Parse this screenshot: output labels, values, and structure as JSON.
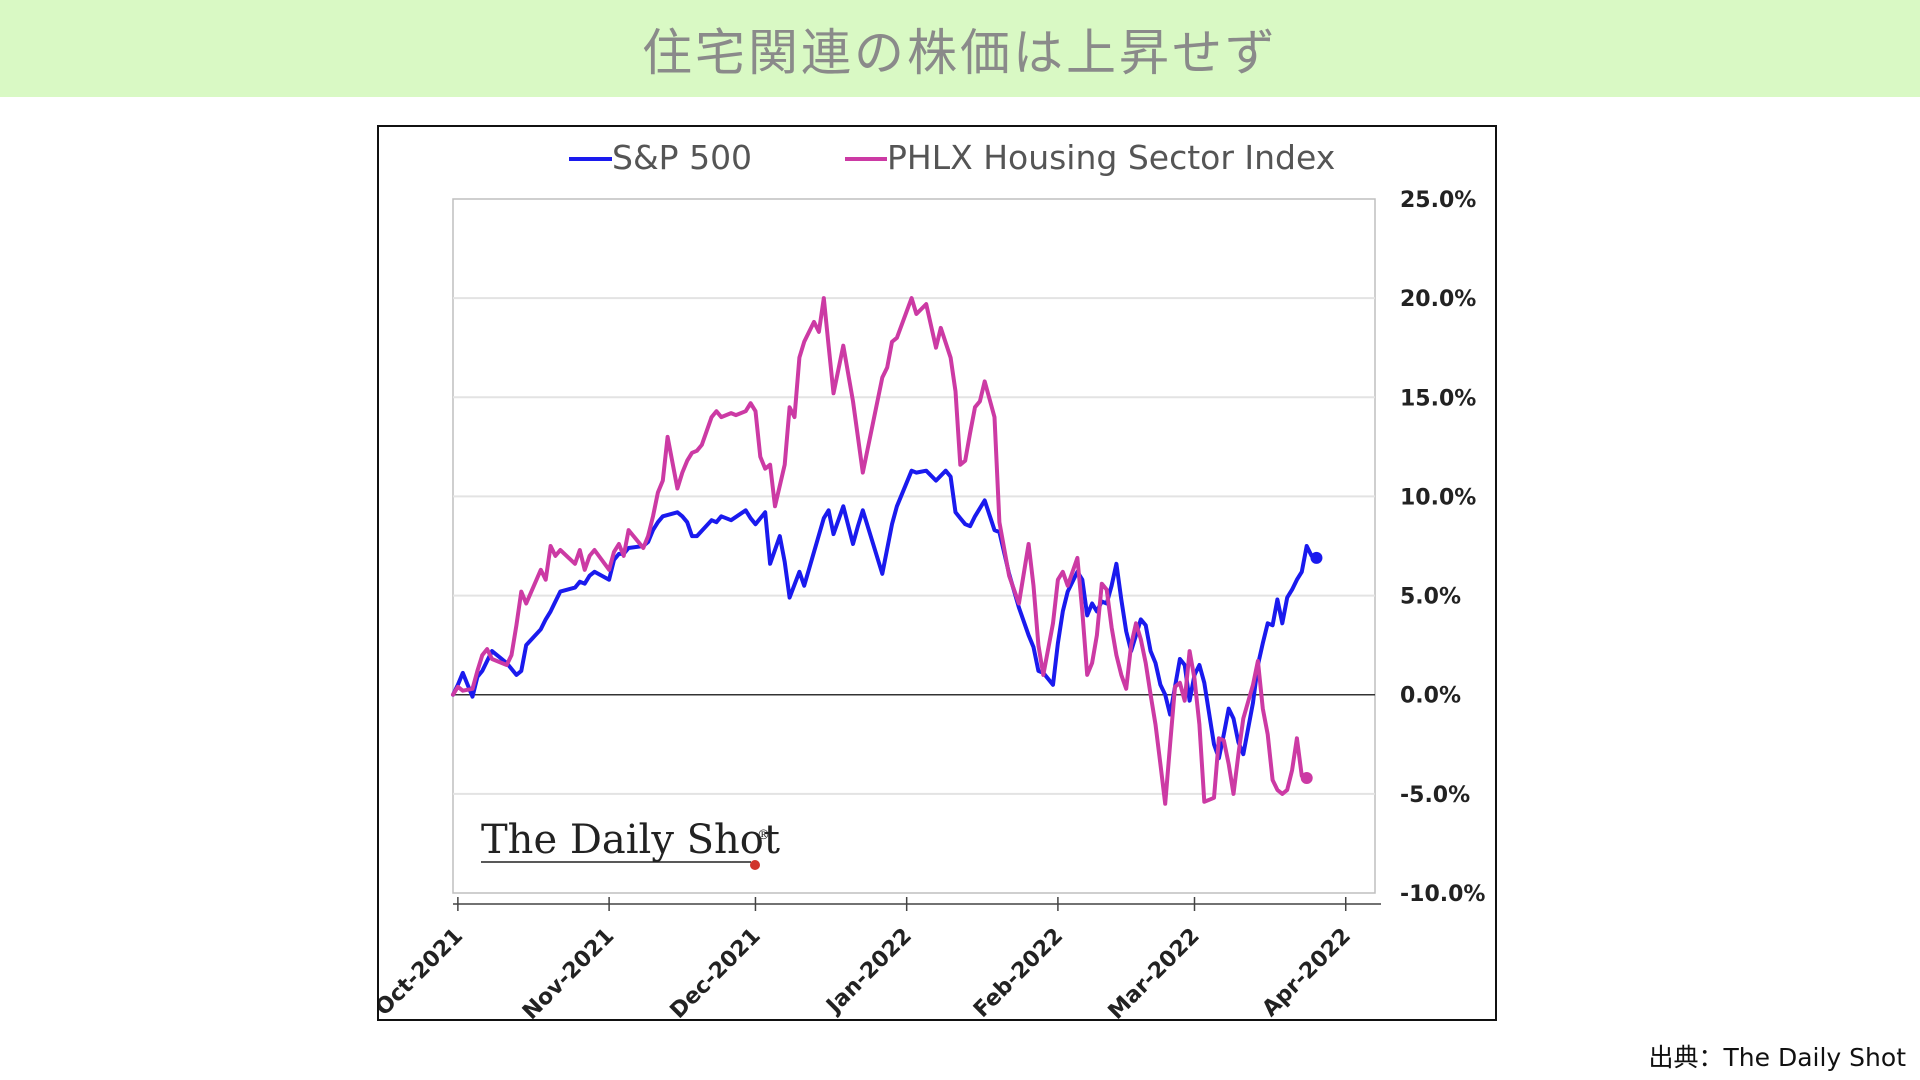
{
  "header": {
    "title": "住宅関連の株価は上昇せず"
  },
  "footer": {
    "source": "出典：The Daily Shot"
  },
  "logo": {
    "text": "The Daily Shot",
    "mark": "®"
  },
  "chart_data": {
    "type": "line",
    "x_ticks": [
      "Oct-2021",
      "Nov-2021",
      "Dec-2021",
      "Jan-2022",
      "Feb-2022",
      "Mar-2022",
      "Apr-2022"
    ],
    "y_ticks": [
      "25.0%",
      "20.0%",
      "15.0%",
      "10.0%",
      "5.0%",
      "0.0%",
      "-5.0%",
      "-10.0%"
    ],
    "ylim": [
      -10,
      25
    ],
    "xlim": [
      "2021-09-30",
      "2022-04-07"
    ],
    "grid": true,
    "legend_position": "top",
    "y_axis_position": "right",
    "series": [
      {
        "name": "S&P 500",
        "color": "#1a1aee",
        "points": [
          [
            "2021-09-30",
            0.0
          ],
          [
            "2021-10-01",
            0.5
          ],
          [
            "2021-10-02",
            1.1
          ],
          [
            "2021-10-04",
            -0.1
          ],
          [
            "2021-10-05",
            0.9
          ],
          [
            "2021-10-06",
            1.2
          ],
          [
            "2021-10-07",
            1.7
          ],
          [
            "2021-10-08",
            2.2
          ],
          [
            "2021-10-11",
            1.6
          ],
          [
            "2021-10-12",
            1.3
          ],
          [
            "2021-10-13",
            1.0
          ],
          [
            "2021-10-14",
            1.2
          ],
          [
            "2021-10-15",
            2.5
          ],
          [
            "2021-10-18",
            3.3
          ],
          [
            "2021-10-19",
            3.8
          ],
          [
            "2021-10-20",
            4.2
          ],
          [
            "2021-10-21",
            4.7
          ],
          [
            "2021-10-22",
            5.2
          ],
          [
            "2021-10-25",
            5.4
          ],
          [
            "2021-10-26",
            5.7
          ],
          [
            "2021-10-27",
            5.6
          ],
          [
            "2021-10-28",
            6.0
          ],
          [
            "2021-10-29",
            6.2
          ],
          [
            "2021-11-01",
            5.8
          ],
          [
            "2021-11-02",
            6.8
          ],
          [
            "2021-11-03",
            7.1
          ],
          [
            "2021-11-04",
            7.1
          ],
          [
            "2021-11-05",
            7.4
          ],
          [
            "2021-11-08",
            7.5
          ],
          [
            "2021-11-09",
            7.7
          ],
          [
            "2021-11-10",
            8.3
          ],
          [
            "2021-11-11",
            8.7
          ],
          [
            "2021-11-12",
            9.0
          ],
          [
            "2021-11-15",
            9.2
          ],
          [
            "2021-11-16",
            9.0
          ],
          [
            "2021-11-17",
            8.7
          ],
          [
            "2021-11-18",
            8.0
          ],
          [
            "2021-11-19",
            8.0
          ],
          [
            "2021-11-22",
            8.8
          ],
          [
            "2021-11-23",
            8.7
          ],
          [
            "2021-11-24",
            9.0
          ],
          [
            "2021-11-26",
            8.8
          ],
          [
            "2021-11-29",
            9.3
          ],
          [
            "2021-11-30",
            8.9
          ],
          [
            "2021-12-01",
            8.6
          ],
          [
            "2021-12-03",
            9.2
          ],
          [
            "2021-12-04",
            6.6
          ],
          [
            "2021-12-06",
            8.0
          ],
          [
            "2021-12-07",
            6.7
          ],
          [
            "2021-12-08",
            4.9
          ],
          [
            "2021-12-10",
            6.2
          ],
          [
            "2021-12-11",
            5.5
          ],
          [
            "2021-12-13",
            7.2
          ],
          [
            "2021-12-15",
            8.9
          ],
          [
            "2021-12-16",
            9.3
          ],
          [
            "2021-12-17",
            8.1
          ],
          [
            "2021-12-19",
            9.5
          ],
          [
            "2021-12-21",
            7.6
          ],
          [
            "2021-12-22",
            8.5
          ],
          [
            "2021-12-23",
            9.3
          ],
          [
            "2021-12-27",
            6.1
          ],
          [
            "2021-12-29",
            8.6
          ],
          [
            "2021-12-30",
            9.5
          ],
          [
            "2022-01-02",
            11.3
          ],
          [
            "2022-01-03",
            11.2
          ],
          [
            "2022-01-05",
            11.3
          ],
          [
            "2022-01-07",
            10.8
          ],
          [
            "2022-01-09",
            11.3
          ],
          [
            "2022-01-10",
            11.0
          ],
          [
            "2022-01-11",
            9.2
          ],
          [
            "2022-01-12",
            8.9
          ],
          [
            "2022-01-13",
            8.6
          ],
          [
            "2022-01-14",
            8.5
          ],
          [
            "2022-01-15",
            9.0
          ],
          [
            "2022-01-17",
            9.8
          ],
          [
            "2022-01-19",
            8.3
          ],
          [
            "2022-01-20",
            8.2
          ],
          [
            "2022-01-22",
            6.1
          ],
          [
            "2022-01-24",
            4.4
          ],
          [
            "2022-01-26",
            3.0
          ],
          [
            "2022-01-27",
            2.4
          ],
          [
            "2022-01-28",
            1.2
          ],
          [
            "2022-01-29",
            1.1
          ],
          [
            "2022-01-31",
            0.5
          ],
          [
            "2022-02-01",
            2.6
          ],
          [
            "2022-02-02",
            4.2
          ],
          [
            "2022-02-03",
            5.2
          ],
          [
            "2022-02-05",
            6.2
          ],
          [
            "2022-02-06",
            5.8
          ],
          [
            "2022-02-07",
            4.0
          ],
          [
            "2022-02-08",
            4.6
          ],
          [
            "2022-02-09",
            4.2
          ],
          [
            "2022-02-10",
            4.7
          ],
          [
            "2022-02-11",
            4.6
          ],
          [
            "2022-02-12",
            5.5
          ],
          [
            "2022-02-13",
            6.6
          ],
          [
            "2022-02-14",
            4.8
          ],
          [
            "2022-02-15",
            3.2
          ],
          [
            "2022-02-16",
            2.2
          ],
          [
            "2022-02-17",
            3.0
          ],
          [
            "2022-02-18",
            3.8
          ],
          [
            "2022-02-19",
            3.5
          ],
          [
            "2022-02-20",
            2.2
          ],
          [
            "2022-02-21",
            1.6
          ],
          [
            "2022-02-22",
            0.5
          ],
          [
            "2022-02-23",
            0.0
          ],
          [
            "2022-02-24",
            -1.0
          ],
          [
            "2022-02-25",
            0.4
          ],
          [
            "2022-02-26",
            1.8
          ],
          [
            "2022-02-27",
            1.5
          ],
          [
            "2022-02-28",
            -0.3
          ],
          [
            "2022-03-01",
            1.0
          ],
          [
            "2022-03-02",
            1.5
          ],
          [
            "2022-03-03",
            0.6
          ],
          [
            "2022-03-05",
            -2.5
          ],
          [
            "2022-03-06",
            -3.2
          ],
          [
            "2022-03-07",
            -2.0
          ],
          [
            "2022-03-08",
            -0.7
          ],
          [
            "2022-03-09",
            -1.2
          ],
          [
            "2022-03-10",
            -2.4
          ],
          [
            "2022-03-11",
            -3.0
          ],
          [
            "2022-03-13",
            -0.4
          ],
          [
            "2022-03-14",
            1.5
          ],
          [
            "2022-03-15",
            2.6
          ],
          [
            "2022-03-16",
            3.6
          ],
          [
            "2022-03-17",
            3.5
          ],
          [
            "2022-03-18",
            4.8
          ],
          [
            "2022-03-19",
            3.6
          ],
          [
            "2022-03-20",
            4.9
          ],
          [
            "2022-03-21",
            5.3
          ],
          [
            "2022-03-22",
            5.8
          ],
          [
            "2022-03-23",
            6.2
          ],
          [
            "2022-03-24",
            7.5
          ],
          [
            "2022-03-25",
            7.0
          ],
          [
            "2022-03-26",
            6.9
          ]
        ]
      },
      {
        "name": "PHLX Housing Sector Index",
        "color": "#cc3aa4",
        "points": [
          [
            "2021-09-30",
            0.0
          ],
          [
            "2021-10-01",
            0.4
          ],
          [
            "2021-10-02",
            0.2
          ],
          [
            "2021-10-04",
            0.3
          ],
          [
            "2021-10-05",
            1.2
          ],
          [
            "2021-10-06",
            2.0
          ],
          [
            "2021-10-07",
            2.3
          ],
          [
            "2021-10-08",
            1.8
          ],
          [
            "2021-10-11",
            1.5
          ],
          [
            "2021-10-12",
            2.0
          ],
          [
            "2021-10-13",
            3.5
          ],
          [
            "2021-10-14",
            5.2
          ],
          [
            "2021-10-15",
            4.6
          ],
          [
            "2021-10-18",
            6.3
          ],
          [
            "2021-10-19",
            5.8
          ],
          [
            "2021-10-20",
            7.5
          ],
          [
            "2021-10-21",
            7.0
          ],
          [
            "2021-10-22",
            7.3
          ],
          [
            "2021-10-25",
            6.6
          ],
          [
            "2021-10-26",
            7.3
          ],
          [
            "2021-10-27",
            6.3
          ],
          [
            "2021-10-28",
            7.0
          ],
          [
            "2021-10-29",
            7.3
          ],
          [
            "2021-11-01",
            6.3
          ],
          [
            "2021-11-02",
            7.2
          ],
          [
            "2021-11-03",
            7.6
          ],
          [
            "2021-11-04",
            7.0
          ],
          [
            "2021-11-05",
            8.3
          ],
          [
            "2021-11-08",
            7.4
          ],
          [
            "2021-11-09",
            8.0
          ],
          [
            "2021-11-10",
            9.0
          ],
          [
            "2021-11-11",
            10.2
          ],
          [
            "2021-11-12",
            10.8
          ],
          [
            "2021-11-13",
            13.0
          ],
          [
            "2021-11-15",
            10.4
          ],
          [
            "2021-11-16",
            11.2
          ],
          [
            "2021-11-17",
            11.8
          ],
          [
            "2021-11-18",
            12.2
          ],
          [
            "2021-11-19",
            12.3
          ],
          [
            "2021-11-20",
            12.6
          ],
          [
            "2021-11-22",
            14.0
          ],
          [
            "2021-11-23",
            14.3
          ],
          [
            "2021-11-24",
            14.0
          ],
          [
            "2021-11-26",
            14.2
          ],
          [
            "2021-11-27",
            14.1
          ],
          [
            "2021-11-29",
            14.3
          ],
          [
            "2021-11-30",
            14.7
          ],
          [
            "2021-12-01",
            14.3
          ],
          [
            "2021-12-02",
            12.0
          ],
          [
            "2021-12-03",
            11.4
          ],
          [
            "2021-12-04",
            11.6
          ],
          [
            "2021-12-05",
            9.5
          ],
          [
            "2021-12-07",
            11.6
          ],
          [
            "2021-12-08",
            14.5
          ],
          [
            "2021-12-09",
            14.0
          ],
          [
            "2021-12-10",
            17.0
          ],
          [
            "2021-12-11",
            17.8
          ],
          [
            "2021-12-13",
            18.8
          ],
          [
            "2021-12-14",
            18.3
          ],
          [
            "2021-12-15",
            20.0
          ],
          [
            "2021-12-16",
            17.6
          ],
          [
            "2021-12-17",
            15.2
          ],
          [
            "2021-12-19",
            17.6
          ],
          [
            "2021-12-21",
            14.8
          ],
          [
            "2021-12-22",
            13.0
          ],
          [
            "2021-12-23",
            11.2
          ],
          [
            "2021-12-27",
            16.0
          ],
          [
            "2021-12-28",
            16.5
          ],
          [
            "2021-12-29",
            17.8
          ],
          [
            "2021-12-30",
            18.0
          ],
          [
            "2022-01-02",
            20.0
          ],
          [
            "2022-01-03",
            19.2
          ],
          [
            "2022-01-05",
            19.7
          ],
          [
            "2022-01-07",
            17.5
          ],
          [
            "2022-01-08",
            18.5
          ],
          [
            "2022-01-10",
            17.0
          ],
          [
            "2022-01-11",
            15.3
          ],
          [
            "2022-01-12",
            11.6
          ],
          [
            "2022-01-13",
            11.8
          ],
          [
            "2022-01-14",
            13.2
          ],
          [
            "2022-01-15",
            14.5
          ],
          [
            "2022-01-16",
            14.8
          ],
          [
            "2022-01-17",
            15.8
          ],
          [
            "2022-01-19",
            14.0
          ],
          [
            "2022-01-20",
            8.7
          ],
          [
            "2022-01-22",
            6.0
          ],
          [
            "2022-01-24",
            4.6
          ],
          [
            "2022-01-26",
            7.6
          ],
          [
            "2022-01-27",
            5.5
          ],
          [
            "2022-01-28",
            2.5
          ],
          [
            "2022-01-29",
            1.0
          ],
          [
            "2022-01-31",
            3.6
          ],
          [
            "2022-02-01",
            5.8
          ],
          [
            "2022-02-02",
            6.2
          ],
          [
            "2022-02-03",
            5.5
          ],
          [
            "2022-02-05",
            6.9
          ],
          [
            "2022-02-06",
            4.2
          ],
          [
            "2022-02-07",
            1.0
          ],
          [
            "2022-02-08",
            1.6
          ],
          [
            "2022-02-09",
            3.0
          ],
          [
            "2022-02-10",
            5.6
          ],
          [
            "2022-02-11",
            5.3
          ],
          [
            "2022-02-12",
            3.4
          ],
          [
            "2022-02-13",
            2.0
          ],
          [
            "2022-02-14",
            1.0
          ],
          [
            "2022-02-15",
            0.3
          ],
          [
            "2022-02-16",
            2.5
          ],
          [
            "2022-02-17",
            3.6
          ],
          [
            "2022-02-18",
            2.8
          ],
          [
            "2022-02-19",
            1.6
          ],
          [
            "2022-02-20",
            0.0
          ],
          [
            "2022-02-21",
            -1.5
          ],
          [
            "2022-02-22",
            -3.5
          ],
          [
            "2022-02-23",
            -5.5
          ],
          [
            "2022-02-24",
            -2.5
          ],
          [
            "2022-02-25",
            0.4
          ],
          [
            "2022-02-26",
            0.6
          ],
          [
            "2022-02-27",
            -0.3
          ],
          [
            "2022-02-28",
            2.2
          ],
          [
            "2022-03-01",
            0.8
          ],
          [
            "2022-03-02",
            -1.5
          ],
          [
            "2022-03-03",
            -5.4
          ],
          [
            "2022-03-05",
            -5.2
          ],
          [
            "2022-03-06",
            -2.2
          ],
          [
            "2022-03-07",
            -2.3
          ],
          [
            "2022-03-08",
            -3.5
          ],
          [
            "2022-03-09",
            -5.0
          ],
          [
            "2022-03-10",
            -3.0
          ],
          [
            "2022-03-11",
            -1.2
          ],
          [
            "2022-03-13",
            0.5
          ],
          [
            "2022-03-14",
            1.7
          ],
          [
            "2022-03-15",
            -0.7
          ],
          [
            "2022-03-16",
            -2.0
          ],
          [
            "2022-03-17",
            -4.3
          ],
          [
            "2022-03-18",
            -4.8
          ],
          [
            "2022-03-19",
            -5.0
          ],
          [
            "2022-03-20",
            -4.8
          ],
          [
            "2022-03-21",
            -3.8
          ],
          [
            "2022-03-22",
            -2.2
          ],
          [
            "2022-03-23",
            -4.1
          ],
          [
            "2022-03-24",
            -4.2
          ]
        ]
      }
    ]
  }
}
